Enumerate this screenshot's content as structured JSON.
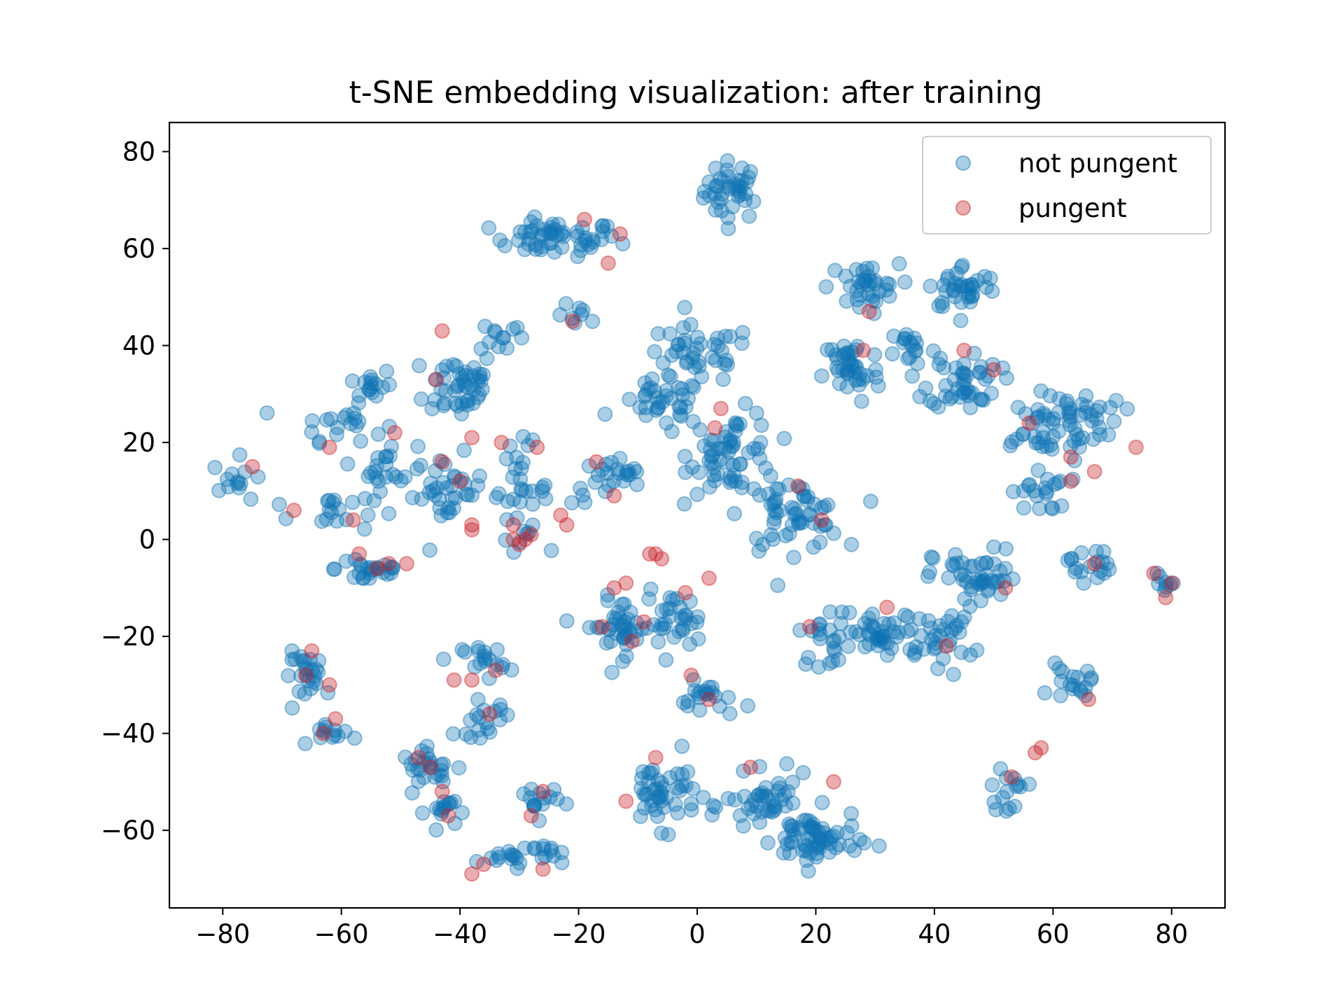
{
  "chart_data": {
    "type": "scatter",
    "title": "t-SNE embedding visualization: after training",
    "xlabel": "",
    "ylabel": "",
    "xlim": [
      -89,
      89
    ],
    "ylim": [
      -76,
      86
    ],
    "xticks": [
      -80,
      -60,
      -40,
      -20,
      0,
      20,
      40,
      60,
      80
    ],
    "yticks": [
      80,
      60,
      40,
      20,
      0,
      -20,
      -40,
      -60
    ],
    "xtick_labels": [
      "−80",
      "−60",
      "−40",
      "−20",
      "0",
      "20",
      "40",
      "60",
      "80"
    ],
    "ytick_labels": [
      "80",
      "60",
      "40",
      "20",
      "0",
      "−20",
      "−40",
      "−60"
    ],
    "grid": false,
    "legend_position": "top-right",
    "series": [
      {
        "name": "not pungent",
        "color": "#1f77b4",
        "fill_color": "#0a74b5",
        "opacity": 0.35,
        "clusters": [
          {
            "center": [
              6,
              72
            ],
            "spread": [
              4,
              5
            ],
            "count": 40
          },
          {
            "center": [
              -24,
              62
            ],
            "spread": [
              9,
              3
            ],
            "count": 55
          },
          {
            "center": [
              -20,
              46
            ],
            "spread": [
              3,
              2
            ],
            "count": 8
          },
          {
            "center": [
              -33,
              42
            ],
            "spread": [
              3,
              3
            ],
            "count": 12
          },
          {
            "center": [
              -40,
              32
            ],
            "spread": [
              5,
              6
            ],
            "count": 45
          },
          {
            "center": [
              -55,
              32
            ],
            "spread": [
              3,
              3
            ],
            "count": 15
          },
          {
            "center": [
              -60,
              24
            ],
            "spread": [
              6,
              3
            ],
            "count": 20
          },
          {
            "center": [
              -77,
              12
            ],
            "spread": [
              4,
              4
            ],
            "count": 14
          },
          {
            "center": [
              -62,
              6
            ],
            "spread": [
              6,
              4
            ],
            "count": 18
          },
          {
            "center": [
              -52,
              15
            ],
            "spread": [
              4,
              4
            ],
            "count": 20
          },
          {
            "center": [
              -42,
              10
            ],
            "spread": [
              5,
              6
            ],
            "count": 35
          },
          {
            "center": [
              -30,
              10
            ],
            "spread": [
              4,
              8
            ],
            "count": 35
          },
          {
            "center": [
              -14,
              12
            ],
            "spread": [
              6,
              4
            ],
            "count": 25
          },
          {
            "center": [
              -55,
              -6
            ],
            "spread": [
              5,
              3
            ],
            "count": 25
          },
          {
            "center": [
              0,
              38
            ],
            "spread": [
              8,
              5
            ],
            "count": 40
          },
          {
            "center": [
              -6,
              28
            ],
            "spread": [
              6,
              4
            ],
            "count": 35
          },
          {
            "center": [
              6,
              18
            ],
            "spread": [
              6,
              7
            ],
            "count": 60
          },
          {
            "center": [
              16,
              5
            ],
            "spread": [
              7,
              6
            ],
            "count": 55
          },
          {
            "center": [
              28,
              52
            ],
            "spread": [
              5,
              4
            ],
            "count": 35
          },
          {
            "center": [
              26,
              35
            ],
            "spread": [
              4,
              6
            ],
            "count": 40
          },
          {
            "center": [
              36,
              40
            ],
            "spread": [
              3,
              3
            ],
            "count": 15
          },
          {
            "center": [
              45,
              52
            ],
            "spread": [
              5,
              4
            ],
            "count": 35
          },
          {
            "center": [
              45,
              33
            ],
            "spread": [
              5,
              5
            ],
            "count": 45
          },
          {
            "center": [
              58,
              22
            ],
            "spread": [
              8,
              5
            ],
            "count": 40
          },
          {
            "center": [
              64,
              26
            ],
            "spread": [
              6,
              4
            ],
            "count": 25
          },
          {
            "center": [
              58,
              10
            ],
            "spread": [
              4,
              4
            ],
            "count": 20
          },
          {
            "center": [
              66,
              -5
            ],
            "spread": [
              3,
              3
            ],
            "count": 18
          },
          {
            "center": [
              47,
              -8
            ],
            "spread": [
              6,
              5
            ],
            "count": 45
          },
          {
            "center": [
              32,
              -20
            ],
            "spread": [
              6,
              4
            ],
            "count": 40
          },
          {
            "center": [
              42,
              -20
            ],
            "spread": [
              4,
              5
            ],
            "count": 30
          },
          {
            "center": [
              22,
              -20
            ],
            "spread": [
              4,
              5
            ],
            "count": 25
          },
          {
            "center": [
              -13,
              -18
            ],
            "spread": [
              5,
              5
            ],
            "count": 40
          },
          {
            "center": [
              -4,
              -17
            ],
            "spread": [
              4,
              5
            ],
            "count": 30
          },
          {
            "center": [
              -65,
              -28
            ],
            "spread": [
              4,
              4
            ],
            "count": 25
          },
          {
            "center": [
              -61,
              -40
            ],
            "spread": [
              3,
              2
            ],
            "count": 12
          },
          {
            "center": [
              -36,
              -25
            ],
            "spread": [
              3,
              3
            ],
            "count": 18
          },
          {
            "center": [
              -36,
              -37
            ],
            "spread": [
              4,
              3
            ],
            "count": 18
          },
          {
            "center": [
              -45,
              -47
            ],
            "spread": [
              4,
              3
            ],
            "count": 25
          },
          {
            "center": [
              -42,
              -56
            ],
            "spread": [
              3,
              3
            ],
            "count": 15
          },
          {
            "center": [
              -27,
              -54
            ],
            "spread": [
              3,
              3
            ],
            "count": 15
          },
          {
            "center": [
              -30,
              -65
            ],
            "spread": [
              6,
              2
            ],
            "count": 25
          },
          {
            "center": [
              2,
              -33
            ],
            "spread": [
              4,
              3
            ],
            "count": 20
          },
          {
            "center": [
              -6,
              -52
            ],
            "spread": [
              5,
              6
            ],
            "count": 45
          },
          {
            "center": [
              12,
              -55
            ],
            "spread": [
              6,
              5
            ],
            "count": 45
          },
          {
            "center": [
              20,
              -62
            ],
            "spread": [
              6,
              5
            ],
            "count": 60
          },
          {
            "center": [
              63,
              -30
            ],
            "spread": [
              3,
              3
            ],
            "count": 18
          },
          {
            "center": [
              52,
              -52
            ],
            "spread": [
              3,
              3
            ],
            "count": 15
          },
          {
            "center": [
              79,
              -9
            ],
            "spread": [
              2,
              2
            ],
            "count": 8
          }
        ]
      },
      {
        "name": "pungent",
        "color": "#d62728",
        "fill_color": "#c0111d",
        "opacity": 0.35,
        "points": [
          [
            -13,
            63
          ],
          [
            -19,
            66
          ],
          [
            -15,
            57
          ],
          [
            -21,
            45
          ],
          [
            -43,
            43
          ],
          [
            -44,
            33
          ],
          [
            -75,
            15
          ],
          [
            -62,
            19
          ],
          [
            -68,
            6
          ],
          [
            -58,
            4
          ],
          [
            -51,
            22
          ],
          [
            -38,
            21
          ],
          [
            -40,
            12
          ],
          [
            -43,
            16
          ],
          [
            -38,
            3
          ],
          [
            -38,
            2
          ],
          [
            -33,
            20
          ],
          [
            -31,
            3
          ],
          [
            -31,
            0
          ],
          [
            -30,
            -1
          ],
          [
            -29,
            0
          ],
          [
            -28,
            1
          ],
          [
            -27,
            19
          ],
          [
            -23,
            5
          ],
          [
            -22,
            3
          ],
          [
            -17,
            16
          ],
          [
            -14,
            9
          ],
          [
            -57,
            -3
          ],
          [
            -54,
            -6
          ],
          [
            -52,
            -5
          ],
          [
            -49,
            -5
          ],
          [
            -8,
            -3
          ],
          [
            -7,
            -3
          ],
          [
            -6,
            -4
          ],
          [
            -2,
            -11
          ],
          [
            2,
            -8
          ],
          [
            -14,
            -10
          ],
          [
            -12,
            -9
          ],
          [
            -16,
            -18
          ],
          [
            -11,
            -21
          ],
          [
            -9,
            -17
          ],
          [
            4,
            27
          ],
          [
            3,
            23
          ],
          [
            17,
            11
          ],
          [
            21,
            4
          ],
          [
            29,
            47
          ],
          [
            28,
            39
          ],
          [
            45,
            39
          ],
          [
            50,
            35
          ],
          [
            56,
            24
          ],
          [
            63,
            17
          ],
          [
            63,
            12
          ],
          [
            67,
            14
          ],
          [
            74,
            19
          ],
          [
            67,
            -5
          ],
          [
            77,
            -7
          ],
          [
            79,
            -12
          ],
          [
            80,
            -9
          ],
          [
            52,
            -10
          ],
          [
            42,
            -22
          ],
          [
            32,
            -14
          ],
          [
            19,
            -18
          ],
          [
            -65,
            -23
          ],
          [
            -66,
            -28
          ],
          [
            -62,
            -30
          ],
          [
            -61,
            -37
          ],
          [
            -63,
            -40
          ],
          [
            -41,
            -29
          ],
          [
            -38,
            -29
          ],
          [
            -34,
            -27
          ],
          [
            -35,
            -36
          ],
          [
            -47,
            -45
          ],
          [
            -45,
            -47
          ],
          [
            -43,
            -52
          ],
          [
            -42,
            -57
          ],
          [
            -28,
            -57
          ],
          [
            -26,
            -52
          ],
          [
            -38,
            -69
          ],
          [
            -36,
            -67
          ],
          [
            -26,
            -68
          ],
          [
            -12,
            -54
          ],
          [
            -7,
            -45
          ],
          [
            -1,
            -28
          ],
          [
            2,
            -33
          ],
          [
            9,
            -47
          ],
          [
            23,
            -50
          ],
          [
            66,
            -33
          ],
          [
            53,
            -49
          ],
          [
            57,
            -44
          ],
          [
            58,
            -43
          ]
        ]
      }
    ]
  }
}
